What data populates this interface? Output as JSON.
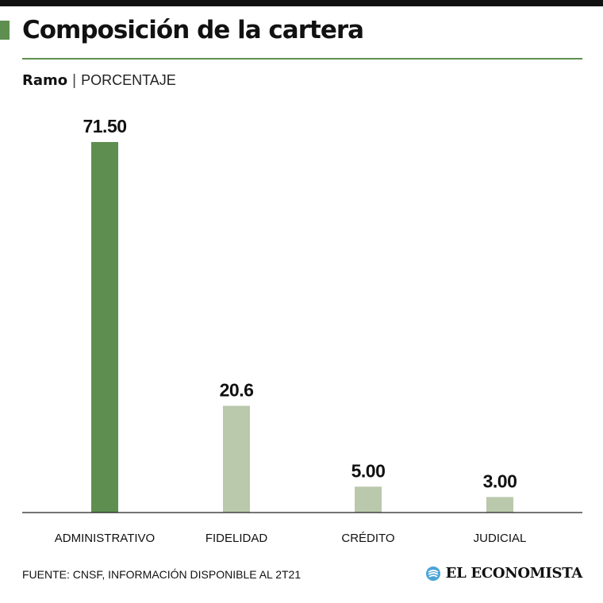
{
  "header": {
    "title": "Composición de la cartera",
    "subtitle_main": "Ramo",
    "subtitle_separator": "|",
    "subtitle_unit": "PORCENTAJE"
  },
  "chart_data": {
    "type": "bar",
    "title": "Composición de la cartera",
    "xlabel": "Ramo",
    "ylabel": "PORCENTAJE",
    "categories": [
      "ADMINISTRATIVO",
      "FIDELIDAD",
      "CRÉDITO",
      "JUDICIAL"
    ],
    "values": [
      71.5,
      20.6,
      5.0,
      3.0
    ],
    "value_labels": [
      "71.50",
      "20.6",
      "5.00",
      "3.00"
    ],
    "highlight_index": 0,
    "ylim": [
      0,
      71.5
    ],
    "grid": false,
    "colors": {
      "highlight": "#5e8f50",
      "default": "#bac8ac"
    }
  },
  "footer": {
    "source": "FUENTE: CNSF, INFORMACIÓN DISPONIBLE AL 2T21",
    "brand_name": "EL ECONOMISTA",
    "brand_icon": "el-economista-logo-icon",
    "brand_icon_color": "#4aa3d8"
  }
}
